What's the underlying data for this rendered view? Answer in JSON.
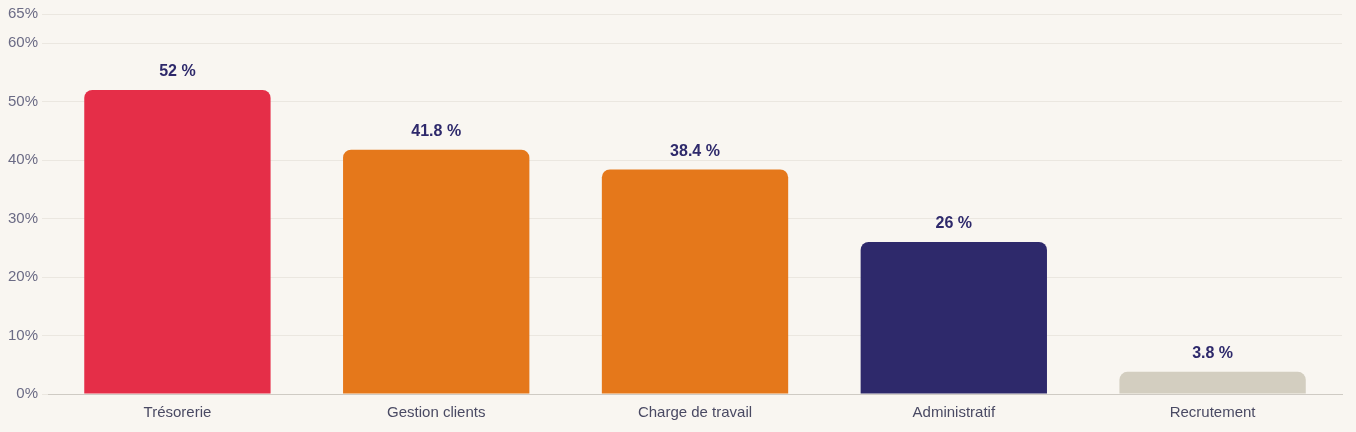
{
  "chart_data": {
    "type": "bar",
    "categories": [
      "Trésorerie",
      "Gestion clients",
      "Charge de travail",
      "Administratif",
      "Recrutement"
    ],
    "values": [
      52,
      41.8,
      38.4,
      26,
      3.8
    ],
    "colors": [
      "#e52e48",
      "#e5781b",
      "#e5781b",
      "#2e296b",
      "#d3cec0"
    ],
    "value_labels": [
      "52 %",
      "41.8 %",
      "38.4 %",
      "26 %",
      "3.8 %"
    ],
    "ylim": [
      0,
      65
    ],
    "yticks": [
      {
        "value": 0,
        "label": "0%"
      },
      {
        "value": 10,
        "label": "10%"
      },
      {
        "value": 20,
        "label": "20%"
      },
      {
        "value": 30,
        "label": "30%"
      },
      {
        "value": 40,
        "label": "40%"
      },
      {
        "value": 50,
        "label": "50%"
      },
      {
        "value": 60,
        "label": "60%"
      },
      {
        "value": 65,
        "label": "65%"
      }
    ],
    "grid": "y",
    "legend": false
  }
}
